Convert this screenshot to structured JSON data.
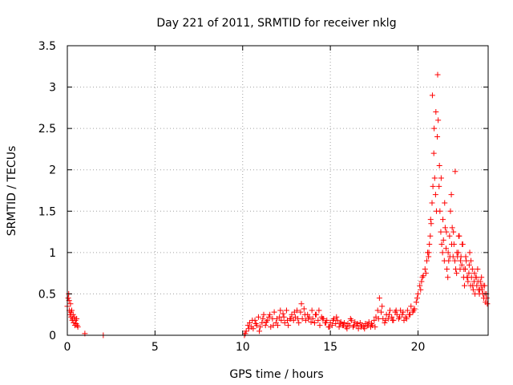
{
  "chart_data": {
    "type": "scatter",
    "title": "Day 221 of 2011, SRMTID for receiver nklg",
    "xlabel": "GPS time / hours",
    "ylabel": "SRMTID / TECUs",
    "xlim": [
      0,
      24
    ],
    "ylim": [
      0,
      3.5
    ],
    "xticks": [
      0,
      5,
      10,
      15,
      20
    ],
    "xtick_labels": [
      "0",
      "5",
      "10",
      "15",
      "20"
    ],
    "yticks": [
      0,
      0.5,
      1,
      1.5,
      2,
      2.5,
      3,
      3.5
    ],
    "ytick_labels": [
      "0",
      "0.5",
      "1",
      "1.5",
      "2",
      "2.5",
      "3",
      "3.5"
    ],
    "grid": true,
    "marker": "+",
    "color": "#ff0000",
    "series": [
      {
        "name": "SRMTID",
        "x": [
          0.0,
          0.05,
          0.08,
          0.1,
          0.12,
          0.15,
          0.18,
          0.2,
          0.22,
          0.25,
          0.28,
          0.3,
          0.33,
          0.36,
          0.4,
          0.43,
          0.46,
          0.5,
          0.53,
          0.56,
          0.6,
          1.0,
          2.05,
          10.1,
          10.2,
          10.3,
          10.4,
          10.5,
          10.6,
          10.7,
          10.8,
          10.9,
          11.0,
          11.1,
          11.2,
          11.3,
          11.4,
          11.5,
          11.6,
          11.7,
          11.8,
          11.9,
          12.0,
          12.1,
          12.2,
          12.3,
          12.4,
          12.5,
          12.6,
          12.7,
          12.8,
          12.9,
          13.0,
          13.1,
          13.2,
          13.3,
          13.4,
          13.5,
          13.6,
          13.7,
          13.8,
          13.9,
          14.0,
          14.1,
          14.2,
          14.3,
          14.4,
          14.5,
          14.6,
          14.7,
          14.8,
          14.9,
          15.0,
          15.1,
          15.2,
          15.3,
          15.4,
          15.5,
          15.6,
          15.7,
          15.8,
          15.9,
          16.0,
          16.1,
          16.2,
          16.3,
          16.4,
          16.5,
          16.6,
          16.7,
          16.8,
          16.9,
          17.0,
          17.1,
          17.2,
          17.3,
          17.4,
          17.5,
          17.6,
          17.7,
          17.8,
          17.9,
          18.0,
          18.1,
          18.2,
          18.3,
          18.4,
          18.5,
          18.6,
          18.7,
          18.8,
          18.9,
          19.0,
          19.1,
          19.2,
          19.3,
          19.4,
          19.5,
          19.6,
          19.7,
          19.8,
          19.9,
          20.0,
          20.1,
          20.15,
          20.2,
          20.3,
          20.4,
          20.5,
          20.55,
          20.6,
          20.65,
          20.7,
          20.75,
          20.8,
          20.85,
          20.9,
          20.95,
          21.0,
          21.05,
          21.1,
          21.15,
          21.2,
          21.25,
          21.3,
          21.35,
          21.4,
          21.45,
          21.5,
          21.55,
          21.6,
          21.65,
          21.7,
          21.75,
          21.8,
          21.85,
          21.9,
          21.95,
          22.0,
          22.05,
          22.1,
          22.15,
          22.2,
          22.25,
          22.3,
          22.35,
          22.4,
          22.45,
          22.5,
          22.55,
          22.6,
          22.65,
          22.7,
          22.75,
          22.8,
          22.85,
          22.9,
          22.95,
          23.0,
          23.05,
          23.1,
          23.15,
          23.2,
          23.25,
          23.3,
          23.35,
          23.4,
          23.45,
          23.5,
          23.55,
          23.6,
          23.65,
          23.7,
          23.75,
          23.8,
          23.85,
          23.9,
          23.95,
          10.15,
          10.35,
          10.55,
          10.75,
          10.95,
          11.15,
          11.35,
          11.55,
          11.75,
          11.95,
          12.15,
          12.35,
          12.55,
          12.75,
          12.95,
          13.15,
          13.35,
          13.55,
          13.75,
          13.95,
          14.15,
          14.35,
          14.55,
          14.75,
          14.95,
          15.15,
          15.35,
          15.55,
          15.75,
          15.95,
          16.15,
          16.35,
          16.55,
          16.75,
          16.95,
          17.15,
          17.35,
          17.55,
          17.75,
          17.95,
          18.15,
          18.35,
          18.55,
          18.75,
          18.95,
          19.15,
          19.35,
          19.55,
          19.75,
          19.95,
          20.25,
          20.45,
          20.62,
          20.72,
          20.82,
          20.92,
          21.02,
          21.12,
          21.22,
          21.32,
          21.42,
          21.52,
          21.62,
          21.72,
          21.82,
          21.92,
          22.02,
          22.12,
          22.22,
          22.32,
          22.42,
          22.52,
          22.62,
          22.72,
          22.82,
          22.92,
          23.02,
          23.12,
          23.22,
          23.32,
          23.42,
          23.52,
          23.62,
          23.72,
          23.82,
          23.92
        ],
        "y": [
          0.35,
          0.45,
          0.5,
          0.42,
          0.3,
          0.25,
          0.38,
          0.28,
          0.22,
          0.3,
          0.18,
          0.2,
          0.25,
          0.15,
          0.22,
          0.12,
          0.18,
          0.14,
          0.2,
          0.12,
          0.1,
          0.02,
          0.0,
          0.0,
          0.05,
          0.12,
          0.15,
          0.1,
          0.08,
          0.18,
          0.12,
          0.22,
          0.1,
          0.15,
          0.25,
          0.12,
          0.18,
          0.22,
          0.1,
          0.2,
          0.28,
          0.15,
          0.12,
          0.22,
          0.18,
          0.26,
          0.15,
          0.3,
          0.12,
          0.2,
          0.25,
          0.18,
          0.22,
          0.3,
          0.15,
          0.28,
          0.2,
          0.32,
          0.18,
          0.25,
          0.22,
          0.16,
          0.2,
          0.15,
          0.25,
          0.18,
          0.12,
          0.22,
          0.2,
          0.15,
          0.18,
          0.1,
          0.15,
          0.12,
          0.2,
          0.14,
          0.18,
          0.1,
          0.16,
          0.12,
          0.15,
          0.1,
          0.14,
          0.12,
          0.18,
          0.1,
          0.16,
          0.12,
          0.08,
          0.15,
          0.12,
          0.1,
          0.14,
          0.12,
          0.16,
          0.1,
          0.12,
          0.18,
          0.22,
          0.3,
          0.45,
          0.28,
          0.2,
          0.15,
          0.25,
          0.2,
          0.3,
          0.22,
          0.18,
          0.28,
          0.25,
          0.2,
          0.3,
          0.25,
          0.18,
          0.22,
          0.3,
          0.25,
          0.35,
          0.28,
          0.32,
          0.4,
          0.5,
          0.6,
          0.55,
          0.65,
          0.72,
          0.8,
          0.9,
          1.0,
          0.95,
          1.1,
          1.2,
          1.35,
          1.6,
          1.8,
          2.2,
          1.9,
          1.7,
          1.5,
          2.4,
          2.6,
          1.8,
          1.5,
          1.25,
          1.1,
          1.0,
          1.15,
          0.9,
          1.3,
          1.05,
          0.8,
          0.7,
          0.9,
          1.2,
          1.5,
          1.7,
          1.3,
          0.95,
          1.1,
          0.9,
          0.8,
          0.75,
          0.95,
          1.0,
          1.2,
          0.8,
          0.95,
          0.85,
          1.1,
          0.7,
          0.6,
          0.8,
          0.9,
          0.7,
          0.65,
          0.75,
          1.0,
          0.6,
          0.7,
          0.8,
          0.55,
          0.65,
          0.5,
          0.7,
          0.6,
          0.8,
          0.55,
          0.5,
          0.65,
          0.6,
          0.55,
          0.5,
          0.45,
          0.6,
          0.4,
          0.5,
          0.38,
          0.02,
          0.08,
          0.18,
          0.14,
          0.05,
          0.2,
          0.16,
          0.25,
          0.12,
          0.2,
          0.3,
          0.22,
          0.18,
          0.2,
          0.28,
          0.2,
          0.38,
          0.25,
          0.2,
          0.3,
          0.25,
          0.3,
          0.2,
          0.15,
          0.1,
          0.18,
          0.22,
          0.14,
          0.12,
          0.08,
          0.2,
          0.12,
          0.14,
          0.1,
          0.08,
          0.12,
          0.14,
          0.1,
          0.2,
          0.35,
          0.18,
          0.25,
          0.18,
          0.3,
          0.22,
          0.28,
          0.2,
          0.25,
          0.3,
          0.45,
          0.7,
          0.75,
          1.0,
          1.4,
          2.9,
          2.5,
          2.7,
          3.15,
          2.05,
          1.9,
          1.4,
          1.6,
          1.25,
          1.0,
          0.95,
          1.1,
          1.25,
          1.98,
          1.0,
          1.2,
          0.9,
          1.1,
          0.8,
          0.95,
          0.7,
          0.85,
          0.9,
          0.6,
          0.75,
          0.7,
          0.65,
          0.55,
          0.7,
          0.6,
          0.5,
          0.45
        ]
      }
    ]
  }
}
